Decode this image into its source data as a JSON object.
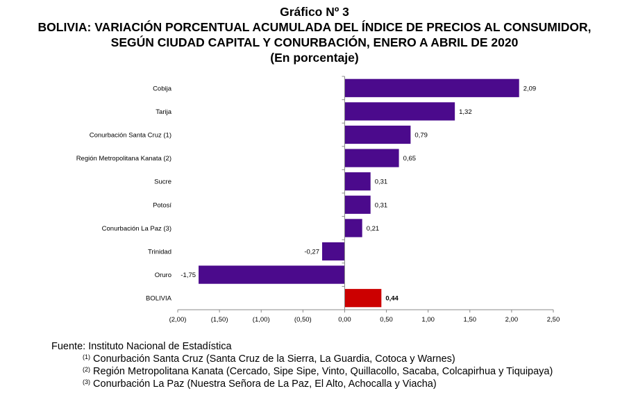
{
  "header": {
    "title_line1": "Gráfico Nº 3",
    "title_line2": "BOLIVIA: VARIACIÓN PORCENTUAL ACUMULADA DEL ÍNDICE DE PRECIOS AL CONSUMIDOR,",
    "title_line3": "SEGÚN CIUDAD CAPITAL Y CONURBACIÓN, ENERO A ABRIL DE 2020",
    "title_line4": "(En porcentaje)"
  },
  "chart_data": {
    "type": "bar",
    "orientation": "horizontal",
    "categories": [
      "Cobija",
      "Tarija",
      "Conurbación Santa Cruz (1)",
      "Región Metropolitana Kanata (2)",
      "Sucre",
      "Potosí",
      "Conurbación La Paz (3)",
      "Trinidad",
      "Oruro",
      "BOLIVIA"
    ],
    "values": [
      2.09,
      1.32,
      0.79,
      0.65,
      0.31,
      0.31,
      0.21,
      -0.27,
      -1.75,
      0.44
    ],
    "value_labels": [
      "2,09",
      "1,32",
      "0,79",
      "0,65",
      "0,31",
      "0,31",
      "0,21",
      "-0,27",
      "-1,75",
      "0,44"
    ],
    "xlim": [
      -2.0,
      2.5
    ],
    "x_ticks": [
      "(2,00)",
      "(1,50)",
      "(1,00)",
      "(0,50)",
      "0,00",
      "0,50",
      "1,00",
      "1,50",
      "2,00",
      "2,50"
    ],
    "x_tick_values": [
      -2.0,
      -1.5,
      -1.0,
      -0.5,
      0.0,
      0.5,
      1.0,
      1.5,
      2.0,
      2.5
    ],
    "colors": {
      "default": "#4b0a8c",
      "highlight": "#cc0000"
    },
    "highlight_category": "BOLIVIA",
    "grid": false
  },
  "notes": {
    "source": "Fuente: Instituto Nacional de Estadística",
    "footnotes": [
      {
        "mark": "(1)",
        "text": " Conurbación Santa Cruz (Santa Cruz de la Sierra, La Guardia, Cotoca y Warnes)"
      },
      {
        "mark": "(2)",
        "text": " Región Metropolitana Kanata (Cercado, Sipe Sipe, Vinto, Quillacollo, Sacaba, Colcapirhua y Tiquipaya)"
      },
      {
        "mark": "(3)",
        "text": " Conurbación La Paz (Nuestra Señora de La Paz, El Alto, Achocalla y Viacha)"
      }
    ]
  }
}
